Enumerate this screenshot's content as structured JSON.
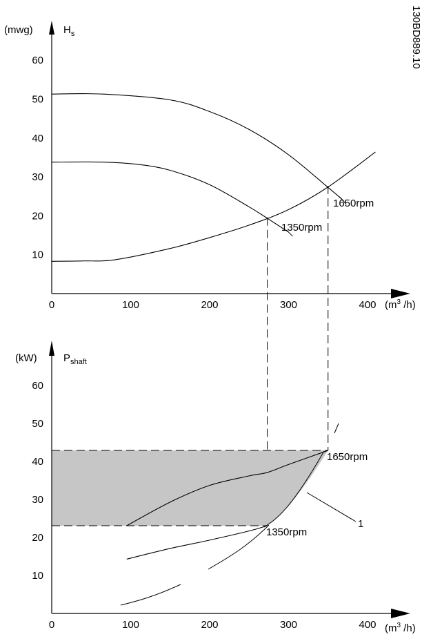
{
  "figure_id": "130BD889.10",
  "chart_data": [
    {
      "type": "line",
      "ylabel_unit": "(mwg)",
      "ylabel_main": "H",
      "ylabel_sub": "s",
      "xlabel_main": "(m",
      "xlabel_sup": "3",
      "xlabel_end": " /h)",
      "xlim": [
        0,
        420
      ],
      "ylim": [
        0,
        70
      ],
      "xticks": [
        "0",
        "100",
        "200",
        "300",
        "400"
      ],
      "yticks": [
        "10",
        "20",
        "30",
        "40",
        "50",
        "60"
      ],
      "series": [
        {
          "name": "1650rpm",
          "x": [
            0,
            65,
            150,
            200,
            250,
            300,
            350,
            368
          ],
          "y": [
            51.3,
            51.3,
            49.8,
            46.8,
            42.2,
            35.7,
            27.3,
            24.2
          ]
        },
        {
          "name": "1350rpm",
          "x": [
            0,
            65,
            110,
            150,
            200,
            250,
            275,
            300
          ],
          "y": [
            33.8,
            33.8,
            33.2,
            31.7,
            28.0,
            22.3,
            19.1,
            15.8
          ]
        },
        {
          "name": "",
          "x": [
            0,
            40,
            80,
            150,
            200,
            250,
            300,
            350,
            410
          ],
          "y": [
            8.3,
            8.4,
            8.7,
            11.6,
            14.4,
            17.6,
            21.6,
            27.4,
            36.4
          ]
        }
      ],
      "annotations": [
        "1650rpm",
        "1350rpm"
      ]
    },
    {
      "type": "area",
      "ylabel_unit": "(kW)",
      "ylabel_main": "P",
      "ylabel_sub": "shaft",
      "xlabel_main": "(m",
      "xlabel_sup": "3",
      "xlabel_end": " /h)",
      "xlim": [
        0,
        420
      ],
      "ylim": [
        0,
        70
      ],
      "xticks": [
        "0",
        "100",
        "200",
        "300",
        "400"
      ],
      "yticks": [
        "10",
        "20",
        "30",
        "40",
        "50",
        "60"
      ],
      "shaded_region": {
        "x_min": 0,
        "x_max": 350,
        "y_min": 23.1,
        "y_max": 42.9
      },
      "series": [
        {
          "name": "1650rpm",
          "x": [
            95,
            150,
            200,
            250,
            273,
            300,
            350
          ],
          "y": [
            23.1,
            29.3,
            33.7,
            36.2,
            37.1,
            39.2,
            42.9
          ]
        },
        {
          "name": "1350rpm",
          "x": [
            95,
            150,
            200,
            250,
            273
          ],
          "y": [
            14.3,
            17.1,
            19.3,
            21.7,
            23.1
          ]
        }
      ],
      "annotations": [
        "1650rpm",
        "1350rpm",
        "1"
      ]
    }
  ]
}
